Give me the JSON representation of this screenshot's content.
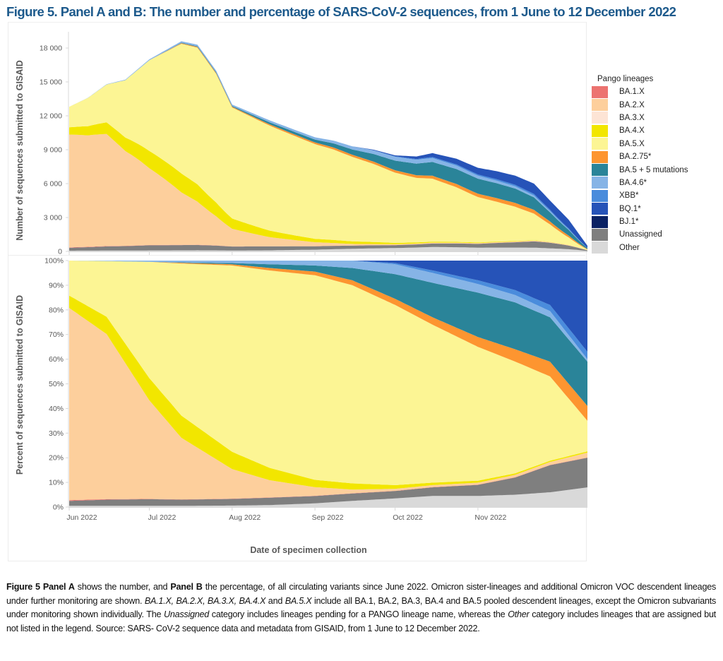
{
  "title": "Figure 5. Panel A and B: The number and percentage of SARS-CoV-2 sequences, from 1 June to 12 December 2022",
  "legend": {
    "title": "Pango lineages",
    "items": [
      {
        "label": "BA.1.X",
        "color": "#ec7370"
      },
      {
        "label": "BA.2.X",
        "color": "#fdcf9c"
      },
      {
        "label": "BA.3.X",
        "color": "#fde4d5"
      },
      {
        "label": "BA.4.X",
        "color": "#f2e600"
      },
      {
        "label": "BA.5.X",
        "color": "#fcf594"
      },
      {
        "label": "BA.2.75*",
        "color": "#fd9530"
      },
      {
        "label": "BA.5 + 5 mutations",
        "color": "#2a8499"
      },
      {
        "label": "BA.4.6*",
        "color": "#86b4e6"
      },
      {
        "label": "XBB*",
        "color": "#4a8cdc"
      },
      {
        "label": "BQ.1*",
        "color": "#2653b8"
      },
      {
        "label": "BJ.1*",
        "color": "#0a2163"
      },
      {
        "label": "Unassigned",
        "color": "#7f7f7f"
      },
      {
        "label": "Other",
        "color": "#d9d9d9"
      }
    ]
  },
  "caption": {
    "p1_bold_a": "Figure 5 Panel A",
    "p1_text_a": " shows the number, and ",
    "p1_bold_b": "Panel B",
    "p1_text_b": " the percentage, of all circulating variants since June 2022. Omicron sister-lineages and additional Omicron VOC descendent lineages under further monitoring are shown. ",
    "p1_italic_a": "BA.1.X, BA.2.X, BA.3.X, BA.4.X",
    "p1_text_c": " and ",
    "p1_italic_b": "BA.5.X",
    "p1_text_d": " include all BA.1, BA.2, BA.3, BA.4 and BA.5 pooled descendent lineages, except the Omicron subvariants under monitoring shown individually. The ",
    "p1_italic_c": "Unassigned",
    "p1_text_e": " category includes lineages pending for a PANGO lineage name, whereas the ",
    "p1_italic_d": "Other",
    "p1_text_f": " category includes lineages that are assigned but not listed in the legend. Source: SARS- CoV-2 sequence data and metadata from GISAID, from 1 June to 12 December 2022."
  },
  "chart_data": [
    {
      "type": "area",
      "panel": "A",
      "title": "Panel A",
      "ylabel": "Number of sequences submitted to GISAID",
      "xlabel": "",
      "ylim": [
        0,
        19000
      ],
      "yticks": [
        0,
        3000,
        6000,
        9000,
        12000,
        15000,
        18000
      ],
      "ytick_labels": [
        "0",
        "3 000",
        "6 000",
        "9 000",
        "12 000",
        "15 000",
        "18 000"
      ],
      "x_days_since_jun1": [
        0,
        7,
        14,
        21,
        30,
        36,
        42,
        48,
        55,
        61,
        68,
        75,
        84,
        92,
        99,
        106,
        114,
        122,
        130,
        136,
        145,
        153,
        160,
        167,
        174,
        180,
        187,
        194
      ],
      "totals": [
        12800,
        13600,
        14800,
        15200,
        17000,
        17800,
        18600,
        18300,
        16000,
        13000,
        12300,
        11600,
        10800,
        10100,
        9800,
        9300,
        9000,
        8500,
        8400,
        8700,
        8200,
        7400,
        7100,
        6700,
        6000,
        4500,
        2800,
        500
      ],
      "stacking": "counts = totals × share from Panel B",
      "grid": false
    },
    {
      "type": "area",
      "panel": "B",
      "title": "Panel B",
      "ylabel": "Percent of sequences submitted to GISAID",
      "xlabel": "Date of specimen collection",
      "ylim": [
        0,
        100
      ],
      "yticks": [
        0,
        10,
        20,
        30,
        40,
        50,
        60,
        70,
        80,
        90,
        100
      ],
      "ytick_labels": [
        "0%",
        "10%",
        "20%",
        "30%",
        "40%",
        "50%",
        "60%",
        "70%",
        "80%",
        "90%",
        "100%"
      ],
      "xticks_days": [
        0,
        30,
        61,
        92,
        122,
        153
      ],
      "xtick_labels": [
        "Jun 2022",
        "Jul 2022",
        "Aug 2022",
        "Sep 2022",
        "Oct 2022",
        "Nov 2022"
      ],
      "x_range_days": [
        0,
        194
      ],
      "x_days_since_jun1": [
        0,
        14,
        30,
        42,
        61,
        75,
        92,
        106,
        122,
        136,
        153,
        167,
        180,
        194
      ],
      "stack_order_bottom_to_top": [
        "Other",
        "Unassigned",
        "BA.1.X",
        "BA.2.X",
        "BA.3.X",
        "BA.4.X",
        "BA.5.X",
        "BA.2.75*",
        "BA.5 + 5 mutations",
        "BA.4.6*",
        "XBB*",
        "BQ.1*",
        "BJ.1*"
      ],
      "series": [
        {
          "name": "Other",
          "values": [
            0.5,
            0.5,
            0.5,
            0.5,
            0.6,
            0.8,
            1.5,
            2.5,
            3.5,
            4.5,
            4.5,
            5.0,
            6.0,
            8.0
          ]
        },
        {
          "name": "Unassigned",
          "values": [
            2.0,
            2.5,
            2.7,
            2.5,
            2.7,
            3.0,
            3.0,
            3.0,
            3.0,
            3.5,
            4.5,
            7.0,
            11.0,
            12.0
          ]
        },
        {
          "name": "BA.1.X",
          "values": [
            0.3,
            0.2,
            0.1,
            0.1,
            0.1,
            0.1,
            0.1,
            0.1,
            0.1,
            0.1,
            0.1,
            0.1,
            0.1,
            0.1
          ]
        },
        {
          "name": "BA.2.X",
          "values": [
            78.0,
            67.0,
            40.0,
            25.0,
            12.0,
            7.0,
            3.5,
            1.5,
            0.8,
            0.8,
            0.8,
            1.0,
            1.2,
            2.0
          ]
        },
        {
          "name": "BA.3.X",
          "values": [
            0,
            0,
            0,
            0,
            0,
            0,
            0,
            0,
            0,
            0,
            0,
            0,
            0,
            0
          ]
        },
        {
          "name": "BA.4.X",
          "values": [
            5.0,
            7.0,
            9.0,
            9.0,
            7.0,
            5.0,
            3.0,
            2.5,
            1.5,
            1.0,
            0.8,
            0.6,
            0.5,
            0.5
          ]
        },
        {
          "name": "BA.5.X",
          "values": [
            14.2,
            22.6,
            47.2,
            61.7,
            75.6,
            80.1,
            83.4,
            80.4,
            73.1,
            64.1,
            54.3,
            45.3,
            34.2,
            12.4
          ]
        },
        {
          "name": "BA.2.75*",
          "values": [
            0,
            0,
            0,
            0.3,
            0.5,
            1.0,
            1.5,
            2.0,
            2.5,
            3.0,
            4.0,
            5.0,
            6.0,
            6.0
          ]
        },
        {
          "name": "BA.5 + 5 mutations",
          "values": [
            0,
            0,
            0,
            0.2,
            0.5,
            1.5,
            2.5,
            5.0,
            10.0,
            14.0,
            18.0,
            19.0,
            18.0,
            18.0
          ]
        },
        {
          "name": "BA.4.6*",
          "values": [
            0,
            0.2,
            0.5,
            0.7,
            1.0,
            1.5,
            2.0,
            3.0,
            4.0,
            4.0,
            3.5,
            3.0,
            2.5,
            1.0
          ]
        },
        {
          "name": "XBB*",
          "values": [
            0,
            0,
            0,
            0,
            0,
            0,
            0,
            0,
            0.5,
            1.0,
            1.5,
            2.0,
            2.5,
            3.0
          ]
        },
        {
          "name": "BQ.1*",
          "values": [
            0,
            0,
            0,
            0,
            0,
            0,
            0,
            0,
            1.0,
            4.0,
            8.0,
            12.0,
            18.0,
            37.0
          ]
        },
        {
          "name": "BJ.1*",
          "values": [
            0,
            0,
            0,
            0,
            0,
            0,
            0,
            0,
            0,
            0,
            0,
            0,
            0,
            0
          ]
        }
      ],
      "grid": false,
      "legend_position": "right"
    }
  ]
}
